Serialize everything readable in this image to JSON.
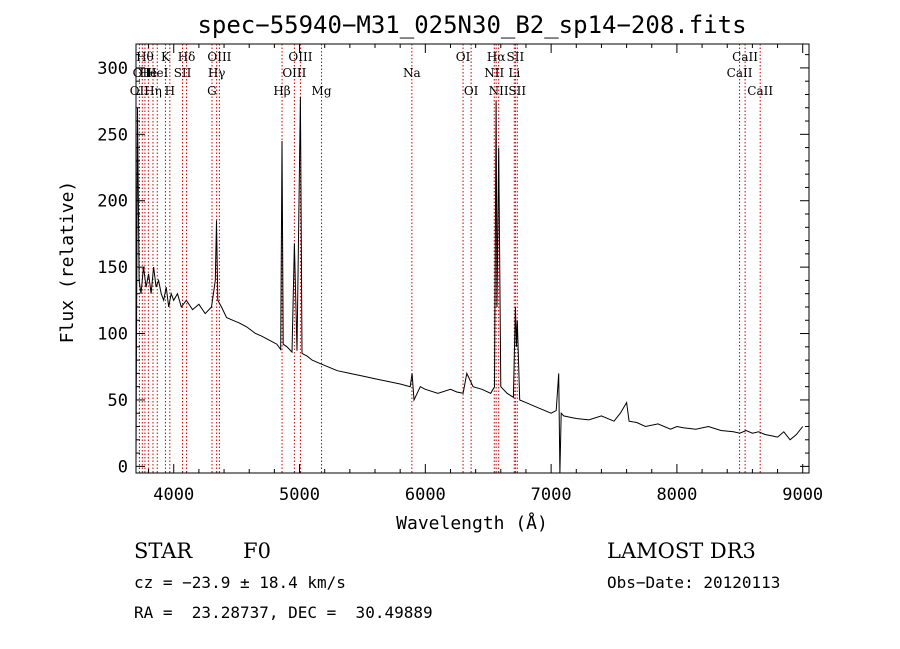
{
  "chart_data": {
    "type": "line",
    "title": "spec−55940−M31_025N30_B2_sp14−208.fits",
    "xlabel": "Wavelength (Å)",
    "ylabel": "Flux (relative)",
    "xlim": [
      3700,
      9050
    ],
    "ylim": [
      -5,
      318
    ],
    "xticks": [
      4000,
      5000,
      6000,
      7000,
      8000,
      9000
    ],
    "yticks": [
      0,
      50,
      100,
      150,
      200,
      250,
      300
    ],
    "series": [
      {
        "name": "flux",
        "x": [
          3700,
          3712,
          3725,
          3740,
          3760,
          3780,
          3800,
          3820,
          3840,
          3860,
          3880,
          3900,
          3920,
          3940,
          3960,
          3980,
          4000,
          4030,
          4060,
          4100,
          4150,
          4200,
          4250,
          4300,
          4330,
          4340,
          4350,
          4380,
          4420,
          4470,
          4520,
          4580,
          4650,
          4700,
          4760,
          4820,
          4850,
          4861,
          4870,
          4900,
          4940,
          4959,
          4980,
          5007,
          5020,
          5060,
          5100,
          5150,
          5200,
          5300,
          5400,
          5500,
          5600,
          5700,
          5800,
          5880,
          5895,
          5910,
          5960,
          6000,
          6100,
          6200,
          6250,
          6300,
          6330,
          6380,
          6450,
          6520,
          6550,
          6563,
          6570,
          6583,
          6600,
          6650,
          6700,
          6716,
          6724,
          6731,
          6750,
          6800,
          6850,
          6900,
          6950,
          7000,
          7040,
          7060,
          7070,
          7080,
          7100,
          7150,
          7200,
          7300,
          7400,
          7500,
          7550,
          7600,
          7620,
          7680,
          7750,
          7850,
          7950,
          8000,
          8050,
          8150,
          8250,
          8350,
          8450,
          8500,
          8550,
          8600,
          8650,
          8700,
          8750,
          8800,
          8850,
          8900,
          8950,
          9000
        ],
        "y": [
          5,
          270,
          140,
          130,
          150,
          135,
          145,
          130,
          150,
          135,
          140,
          130,
          125,
          135,
          120,
          130,
          125,
          130,
          120,
          125,
          118,
          122,
          115,
          120,
          140,
          185,
          125,
          120,
          112,
          110,
          108,
          105,
          100,
          98,
          95,
          92,
          88,
          245,
          92,
          90,
          86,
          168,
          87,
          278,
          85,
          83,
          80,
          78,
          76,
          72,
          70,
          68,
          66,
          64,
          62,
          60,
          70,
          50,
          60,
          58,
          55,
          58,
          56,
          55,
          70,
          60,
          58,
          55,
          60,
          275,
          120,
          240,
          60,
          55,
          52,
          120,
          90,
          110,
          50,
          48,
          46,
          44,
          42,
          40,
          42,
          70,
          -5,
          40,
          38,
          37,
          36,
          35,
          38,
          34,
          40,
          48,
          34,
          33,
          30,
          32,
          28,
          30,
          29,
          28,
          30,
          27,
          26,
          25,
          27,
          25,
          26,
          24,
          23,
          22,
          26,
          20,
          24,
          30
        ]
      }
    ],
    "lines": [
      {
        "wl": 3727,
        "label": "OII",
        "row": 3
      },
      {
        "wl": 3750,
        "label": "OII",
        "row": 2
      },
      {
        "wl": 3771,
        "label": "Hθ",
        "row": 1
      },
      {
        "wl": 3798,
        "label": "He",
        "row": 2
      },
      {
        "wl": 3835,
        "label": "Hη",
        "row": 3
      },
      {
        "wl": 3869,
        "label": "HeI",
        "row": 2
      },
      {
        "wl": 3934,
        "label": "K",
        "row": 1
      },
      {
        "wl": 3969,
        "label": "H",
        "row": 3
      },
      {
        "wl": 4070,
        "label": "SII",
        "row": 2
      },
      {
        "wl": 4102,
        "label": "Hδ",
        "row": 1
      },
      {
        "wl": 4304,
        "label": "G",
        "row": 3
      },
      {
        "wl": 4341,
        "label": "Hγ",
        "row": 2
      },
      {
        "wl": 4363,
        "label": "OIII",
        "row": 1
      },
      {
        "wl": 4861,
        "label": "Hβ",
        "row": 3
      },
      {
        "wl": 4959,
        "label": "OIII",
        "row": 2
      },
      {
        "wl": 5007,
        "label": "OIII",
        "row": 1
      },
      {
        "wl": 5175,
        "label": "Mg",
        "row": 3
      },
      {
        "wl": 5893,
        "label": "Na",
        "row": 2
      },
      {
        "wl": 6300,
        "label": "OI",
        "row": 1
      },
      {
        "wl": 6364,
        "label": "OI",
        "row": 3
      },
      {
        "wl": 6548,
        "label": "NII",
        "row": 2
      },
      {
        "wl": 6563,
        "label": "Hα",
        "row": 1
      },
      {
        "wl": 6583,
        "label": "NII",
        "row": 3
      },
      {
        "wl": 6707,
        "label": "Li",
        "row": 2
      },
      {
        "wl": 6716,
        "label": "SII",
        "row": 1
      },
      {
        "wl": 6731,
        "label": "SII",
        "row": 3
      },
      {
        "wl": 8498,
        "label": "CaII",
        "row": 2
      },
      {
        "wl": 8542,
        "label": "CaII",
        "row": 1
      },
      {
        "wl": 8662,
        "label": "CaII",
        "row": 3
      }
    ]
  },
  "info": {
    "class_label": "STAR",
    "subclass": "F0",
    "survey": "LAMOST DR3",
    "redshift": "cz = −23.9 ± 18.4 km/s",
    "obs_date": "Obs−Date: 20120113",
    "coords": "RA =  23.28737, DEC =  30.49889"
  },
  "colors": {
    "axis": "#000000",
    "spectrum": "#000000",
    "lines": "#cc0000"
  }
}
